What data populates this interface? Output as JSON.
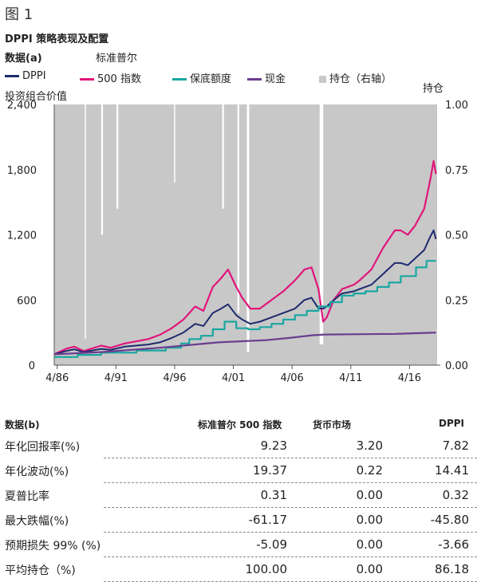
{
  "figure_label": "图 1",
  "chart_title": "DPPI 策略表现及配置",
  "panel_a_label": "数据(a)",
  "std_label": "标准普尔",
  "legend": [
    {
      "label": "DPPI",
      "color": "#1f2a6e",
      "kind": "line"
    },
    {
      "label": "500 指数",
      "color": "#e0157a",
      "kind": "line"
    },
    {
      "label": "保底额度",
      "color": "#19a7a0",
      "kind": "line"
    },
    {
      "label": "现金",
      "color": "#6a3d8f",
      "kind": "line"
    },
    {
      "label": "持仓（右轴）",
      "color": "#c8c8c8",
      "kind": "square"
    }
  ],
  "ylabel_left": "投资组合价值",
  "ylabel_right": "持仓",
  "chart_data": {
    "type": "line",
    "x_ticks": [
      "4/86",
      "4/91",
      "4/96",
      "4/01",
      "4/06",
      "4/11",
      "4/16"
    ],
    "x_tick_years": [
      1986.25,
      1991.25,
      1996.25,
      2001.25,
      2006.25,
      2011.25,
      2016.25
    ],
    "xlim": [
      1986.0,
      2018.6
    ],
    "ylim_left": [
      0,
      2400
    ],
    "y_ticks_left": [
      "0",
      "600",
      "1,200",
      "1,800",
      "2,400"
    ],
    "y_tick_values_left": [
      0,
      600,
      1200,
      1800,
      2400
    ],
    "ylim_right": [
      0,
      1
    ],
    "y_ticks_right": [
      "0.00",
      "0.25",
      "0.50",
      "0.75",
      "1.00"
    ],
    "y_tick_values_right": [
      0,
      0.25,
      0.5,
      0.75,
      1
    ],
    "series": [
      {
        "name": "500 指数",
        "color": "#e0157a",
        "x": [
          1986.0,
          1987.0,
          1987.7,
          1988.5,
          1990.0,
          1990.8,
          1992.0,
          1994.0,
          1995.0,
          1996.0,
          1997.0,
          1998.0,
          1998.7,
          1999.5,
          2000.2,
          2000.8,
          2001.5,
          2002.0,
          2002.7,
          2003.5,
          2004.5,
          2005.5,
          2006.5,
          2007.3,
          2007.9,
          2008.5,
          2008.9,
          2009.2,
          2009.8,
          2010.5,
          2011.5,
          2012.0,
          2013.0,
          2014.0,
          2015.0,
          2015.5,
          2016.1,
          2016.7,
          2017.5,
          2018.0,
          2018.3,
          2018.5
        ],
        "y": [
          100,
          150,
          170,
          130,
          180,
          160,
          200,
          240,
          280,
          340,
          420,
          540,
          500,
          720,
          800,
          880,
          720,
          620,
          520,
          520,
          600,
          680,
          780,
          880,
          900,
          700,
          400,
          440,
          600,
          700,
          740,
          780,
          880,
          1080,
          1240,
          1240,
          1200,
          1280,
          1440,
          1700,
          1880,
          1760
        ]
      },
      {
        "name": "DPPI",
        "color": "#1f2a6e",
        "x": [
          1986.0,
          1987.0,
          1987.7,
          1988.5,
          1990.0,
          1990.8,
          1992.0,
          1994.0,
          1995.0,
          1996.0,
          1997.0,
          1998.0,
          1998.7,
          1999.5,
          2000.2,
          2000.8,
          2001.5,
          2002.0,
          2002.7,
          2003.5,
          2004.5,
          2005.5,
          2006.5,
          2007.3,
          2007.9,
          2008.5,
          2008.9,
          2009.2,
          2009.8,
          2010.5,
          2011.5,
          2012.0,
          2013.0,
          2014.0,
          2015.0,
          2015.5,
          2016.1,
          2016.7,
          2017.5,
          2018.0,
          2018.3,
          2018.5
        ],
        "y": [
          100,
          130,
          145,
          120,
          150,
          140,
          170,
          190,
          210,
          250,
          300,
          380,
          360,
          480,
          520,
          560,
          460,
          420,
          380,
          400,
          440,
          480,
          520,
          600,
          620,
          520,
          520,
          540,
          600,
          660,
          680,
          700,
          740,
          840,
          940,
          940,
          920,
          980,
          1060,
          1180,
          1240,
          1160
        ]
      },
      {
        "name": "保底额度",
        "color": "#19a7a0",
        "x": [
          1986.0,
          1988.0,
          1988.0,
          1990.0,
          1990.0,
          1993.0,
          1993.0,
          1995.5,
          1995.5,
          1996.8,
          1996.8,
          1997.5,
          1997.5,
          1998.5,
          1998.5,
          1999.5,
          1999.5,
          2000.5,
          2000.5,
          2001.5,
          2001.5,
          2002.5,
          2002.5,
          2003.5,
          2003.5,
          2004.5,
          2004.5,
          2005.5,
          2005.5,
          2006.5,
          2006.5,
          2007.5,
          2007.5,
          2008.5,
          2008.5,
          2009.5,
          2009.5,
          2010.5,
          2010.5,
          2011.5,
          2011.5,
          2012.5,
          2012.5,
          2013.5,
          2013.5,
          2014.5,
          2014.5,
          2015.5,
          2015.5,
          2016.8,
          2016.8,
          2017.7,
          2017.7,
          2018.5
        ],
        "y": [
          75,
          75,
          95,
          95,
          115,
          115,
          135,
          135,
          160,
          160,
          200,
          200,
          240,
          240,
          270,
          270,
          330,
          330,
          400,
          400,
          340,
          340,
          330,
          330,
          350,
          350,
          380,
          380,
          420,
          420,
          460,
          460,
          500,
          500,
          540,
          540,
          580,
          580,
          640,
          640,
          660,
          660,
          680,
          680,
          720,
          720,
          760,
          760,
          820,
          820,
          900,
          900,
          960,
          960
        ]
      },
      {
        "name": "现金",
        "color": "#6a3d8f",
        "x": [
          1986.0,
          1990.0,
          1995.0,
          2000.0,
          2004.0,
          2006.0,
          2008.0,
          2009.0,
          2012.0,
          2015.0,
          2018.5
        ],
        "y": [
          100,
          120,
          160,
          210,
          230,
          250,
          275,
          282,
          285,
          288,
          300
        ]
      }
    ],
    "holdings_right": {
      "name": "持仓（右轴）",
      "color": "#c8c8c8",
      "x": [
        1986.0,
        1988.6,
        1988.6,
        1988.7,
        1988.7,
        1990.0,
        1990.0,
        1990.15,
        1990.15,
        1991.3,
        1991.3,
        1991.45,
        1991.45,
        1996.2,
        1996.2,
        1996.3,
        1996.3,
        2000.3,
        2000.3,
        2000.45,
        2000.45,
        2001.6,
        2001.6,
        2001.75,
        2001.75,
        2002.4,
        2002.4,
        2002.6,
        2002.6,
        2008.6,
        2008.6,
        2008.9,
        2008.9,
        2018.6
      ],
      "y": [
        1,
        1,
        0.1,
        0.1,
        1,
        1,
        0.5,
        0.5,
        1,
        1,
        0.6,
        0.6,
        1,
        1,
        0.7,
        0.7,
        1,
        1,
        0.6,
        0.6,
        1,
        1,
        0.2,
        0.2,
        1,
        1,
        0.05,
        0.05,
        1,
        1,
        0.08,
        0.08,
        1,
        1
      ]
    }
  },
  "table": {
    "panel_b_label": "数据(b)",
    "columns": [
      "标准普尔 500 指数",
      "货币市场",
      "DPPI"
    ],
    "rows": [
      {
        "label": "年化回报率(%)",
        "values": [
          "9.23",
          "3.20",
          "7.82"
        ]
      },
      {
        "label": "年化波动(%)",
        "values": [
          "19.37",
          "0.22",
          "14.41"
        ]
      },
      {
        "label": "夏普比率",
        "values": [
          "0.31",
          "0.00",
          "0.32"
        ]
      },
      {
        "label": "最大跌幅(%)",
        "values": [
          "-61.17",
          "0.00",
          "-45.80"
        ]
      },
      {
        "label": "预期损失 99% (%)",
        "values": [
          "-5.09",
          "0.00",
          "-3.66"
        ]
      },
      {
        "label": "平均持仓（%)",
        "values": [
          "100.00",
          "0.00",
          "86.18"
        ]
      }
    ]
  }
}
